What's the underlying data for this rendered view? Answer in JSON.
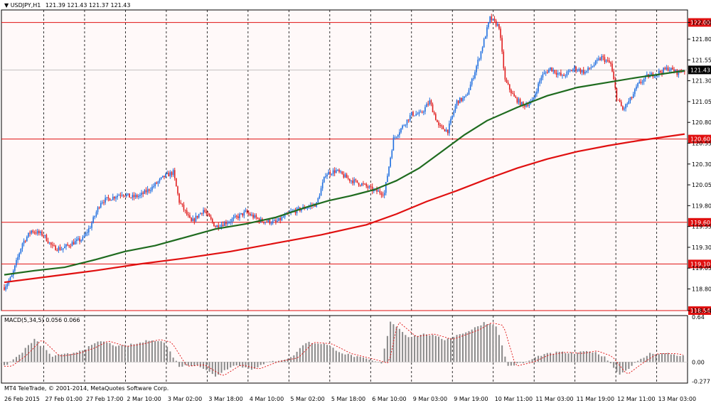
{
  "header": {
    "symbol_label": "USDJPY,H1",
    "ohlc": "121.39 121.43 121.37 121.43"
  },
  "macd_label": "MACD(5,34,5) 0.056 0.066",
  "copyright": "MT4 TeleTrade, © 2001-2014, MetaQuotes Software Corp.",
  "colors": {
    "background": "#fff9f9",
    "bull": "#1f6fe0",
    "bear": "#e02020",
    "ma_fast": "#1f6b1f",
    "ma_slow": "#e01010",
    "level": "#e01010",
    "macd_hist": "#8a8a8a",
    "macd_signal": "#e01010",
    "grid": "#000000"
  },
  "price_axis": {
    "labels": [
      "122.00",
      "121.80",
      "121.55",
      "121.30",
      "121.05",
      "120.80",
      "120.55",
      "120.30",
      "120.05",
      "119.80",
      "119.55",
      "119.30",
      "119.05",
      "118.80",
      "118.54"
    ],
    "current": "121.43"
  },
  "levels": [
    {
      "value": 122.0,
      "label": "122.00"
    },
    {
      "value": 120.6,
      "label": "120.60"
    },
    {
      "value": 119.6,
      "label": "119.60"
    },
    {
      "value": 119.1,
      "label": "119.10"
    },
    {
      "value": 118.54,
      "label": "118.54"
    }
  ],
  "macd_axis": {
    "labels": [
      "0.64",
      "0.00",
      "-0.277"
    ]
  },
  "time_axis": {
    "labels": [
      "26 Feb 2015",
      "27 Feb 01:00",
      "27 Feb 17:00",
      "2 Mar 10:00",
      "3 Mar 02:00",
      "3 Mar 18:00",
      "4 Mar 10:00",
      "5 Mar 02:00",
      "5 Mar 18:00",
      "6 Mar 10:00",
      "9 Mar 03:00",
      "9 Mar 19:00",
      "10 Mar 11:00",
      "11 Mar 03:00",
      "11 Mar 19:00",
      "12 Mar 11:00",
      "13 Mar 03:00"
    ]
  },
  "chart_data": {
    "type": "candlestick",
    "symbol": "USDJPY",
    "timeframe": "H1",
    "ylim": [
      118.54,
      122.15
    ],
    "macd_ylim": [
      -0.3,
      0.66
    ],
    "price_path": [
      [
        0,
        118.82
      ],
      [
        5,
        118.95
      ],
      [
        12,
        119.35
      ],
      [
        18,
        119.5
      ],
      [
        26,
        119.45
      ],
      [
        32,
        119.3
      ],
      [
        38,
        119.28
      ],
      [
        45,
        119.35
      ],
      [
        52,
        119.4
      ],
      [
        57,
        119.55
      ],
      [
        64,
        119.85
      ],
      [
        72,
        119.9
      ],
      [
        78,
        119.95
      ],
      [
        84,
        119.9
      ],
      [
        90,
        119.92
      ],
      [
        98,
        120.02
      ],
      [
        106,
        120.15
      ],
      [
        112,
        120.2
      ],
      [
        116,
        119.85
      ],
      [
        124,
        119.6
      ],
      [
        132,
        119.75
      ],
      [
        140,
        119.55
      ],
      [
        150,
        119.62
      ],
      [
        160,
        119.72
      ],
      [
        170,
        119.62
      ],
      [
        180,
        119.6
      ],
      [
        190,
        119.72
      ],
      [
        200,
        119.78
      ],
      [
        207,
        119.82
      ],
      [
        213,
        120.18
      ],
      [
        220,
        120.22
      ],
      [
        228,
        120.12
      ],
      [
        238,
        120.05
      ],
      [
        245,
        119.98
      ],
      [
        252,
        119.95
      ],
      [
        258,
        120.6
      ],
      [
        264,
        120.75
      ],
      [
        270,
        120.9
      ],
      [
        276,
        120.9
      ],
      [
        282,
        121.05
      ],
      [
        288,
        120.75
      ],
      [
        294,
        120.7
      ],
      [
        300,
        121.05
      ],
      [
        306,
        121.1
      ],
      [
        310,
        121.3
      ],
      [
        316,
        121.65
      ],
      [
        322,
        122.05
      ],
      [
        328,
        121.95
      ],
      [
        332,
        121.3
      ],
      [
        338,
        121.1
      ],
      [
        344,
        121.0
      ],
      [
        350,
        121.05
      ],
      [
        356,
        121.35
      ],
      [
        362,
        121.45
      ],
      [
        370,
        121.35
      ],
      [
        378,
        121.45
      ],
      [
        385,
        121.4
      ],
      [
        390,
        121.48
      ],
      [
        396,
        121.58
      ],
      [
        402,
        121.5
      ],
      [
        406,
        121.1
      ],
      [
        410,
        120.95
      ],
      [
        416,
        121.1
      ],
      [
        420,
        121.25
      ],
      [
        426,
        121.35
      ],
      [
        434,
        121.4
      ],
      [
        440,
        121.45
      ],
      [
        446,
        121.4
      ],
      [
        451,
        121.43
      ]
    ],
    "ma_fast": [
      [
        0,
        118.97
      ],
      [
        20,
        119.02
      ],
      [
        40,
        119.06
      ],
      [
        60,
        119.15
      ],
      [
        80,
        119.25
      ],
      [
        100,
        119.32
      ],
      [
        120,
        119.42
      ],
      [
        140,
        119.52
      ],
      [
        160,
        119.58
      ],
      [
        180,
        119.66
      ],
      [
        200,
        119.78
      ],
      [
        215,
        119.86
      ],
      [
        230,
        119.92
      ],
      [
        245,
        119.99
      ],
      [
        260,
        120.1
      ],
      [
        275,
        120.25
      ],
      [
        290,
        120.45
      ],
      [
        305,
        120.65
      ],
      [
        320,
        120.82
      ],
      [
        340,
        120.98
      ],
      [
        360,
        121.12
      ],
      [
        380,
        121.22
      ],
      [
        400,
        121.28
      ],
      [
        420,
        121.34
      ],
      [
        451,
        121.42
      ]
    ],
    "ma_slow": [
      [
        0,
        118.88
      ],
      [
        30,
        118.95
      ],
      [
        60,
        119.02
      ],
      [
        90,
        119.1
      ],
      [
        120,
        119.17
      ],
      [
        150,
        119.25
      ],
      [
        180,
        119.35
      ],
      [
        210,
        119.45
      ],
      [
        240,
        119.57
      ],
      [
        260,
        119.7
      ],
      [
        280,
        119.85
      ],
      [
        300,
        119.98
      ],
      [
        320,
        120.12
      ],
      [
        340,
        120.25
      ],
      [
        360,
        120.36
      ],
      [
        380,
        120.45
      ],
      [
        400,
        120.52
      ],
      [
        420,
        120.58
      ],
      [
        451,
        120.66
      ]
    ],
    "macd_path": [
      [
        0,
        -0.06
      ],
      [
        10,
        0.1
      ],
      [
        20,
        0.32
      ],
      [
        32,
        0.08
      ],
      [
        44,
        0.12
      ],
      [
        55,
        0.2
      ],
      [
        64,
        0.3
      ],
      [
        76,
        0.22
      ],
      [
        88,
        0.26
      ],
      [
        98,
        0.32
      ],
      [
        106,
        0.28
      ],
      [
        116,
        -0.06
      ],
      [
        128,
        -0.04
      ],
      [
        140,
        -0.2
      ],
      [
        152,
        -0.04
      ],
      [
        164,
        -0.1
      ],
      [
        176,
        0.0
      ],
      [
        190,
        0.06
      ],
      [
        200,
        0.28
      ],
      [
        212,
        0.26
      ],
      [
        225,
        0.12
      ],
      [
        240,
        0.04
      ],
      [
        250,
        -0.02
      ],
      [
        256,
        0.58
      ],
      [
        268,
        0.36
      ],
      [
        280,
        0.4
      ],
      [
        292,
        0.32
      ],
      [
        300,
        0.38
      ],
      [
        310,
        0.46
      ],
      [
        318,
        0.56
      ],
      [
        326,
        0.52
      ],
      [
        334,
        -0.06
      ],
      [
        346,
        0.0
      ],
      [
        356,
        0.1
      ],
      [
        368,
        0.14
      ],
      [
        378,
        0.12
      ],
      [
        388,
        0.16
      ],
      [
        398,
        0.08
      ],
      [
        408,
        -0.18
      ],
      [
        418,
        -0.02
      ],
      [
        428,
        0.12
      ],
      [
        440,
        0.12
      ],
      [
        451,
        0.08
      ]
    ]
  }
}
